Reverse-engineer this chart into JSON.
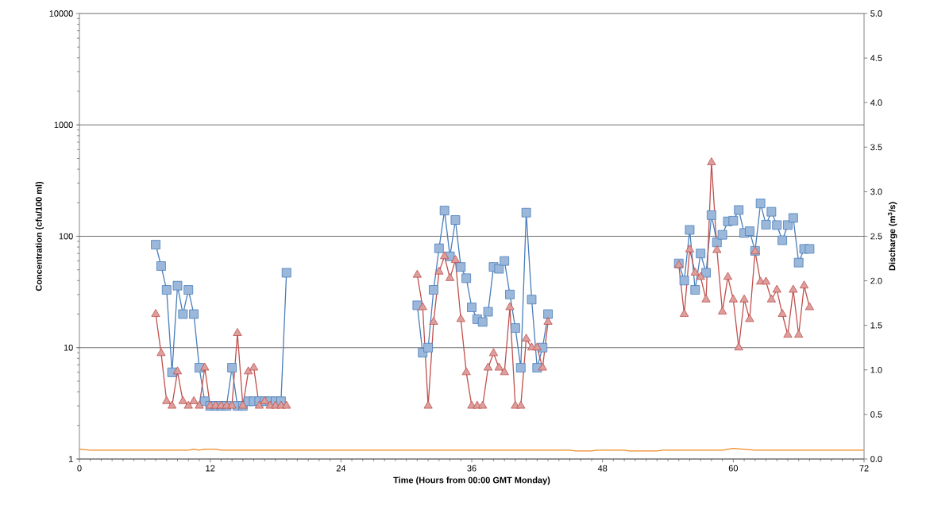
{
  "chart_data": {
    "type": "line",
    "xlabel": "Time (Hours from 00:00 GMT Monday)",
    "ylabel": "Concentration (cfu/100 ml)",
    "y2label": "Discharge (m$^{3}$/s)",
    "log": "y",
    "grid": "y",
    "xlim": [
      0,
      72
    ],
    "xticks": [
      0,
      12,
      24,
      36,
      48,
      60,
      72
    ],
    "ylim": [
      1,
      10000
    ],
    "yticks": [
      1,
      10,
      100,
      1000,
      10000
    ],
    "y2lim": [
      0,
      5
    ],
    "y2ticks": [
      {
        "value": 0,
        "label": "0.0"
      },
      {
        "value": 0.5,
        "label": "0.5"
      },
      {
        "value": 1,
        "label": "1.0"
      },
      {
        "value": 1.5,
        "label": "1.5"
      },
      {
        "value": 2,
        "label": "2.0"
      },
      {
        "value": 2.5,
        "label": "2.5"
      },
      {
        "value": 3,
        "label": "3.0"
      },
      {
        "value": 3.5,
        "label": "3.5"
      },
      {
        "value": 4,
        "label": "4.0"
      },
      {
        "value": 4.5,
        "label": "4.5"
      },
      {
        "value": 5,
        "label": "5.0"
      }
    ],
    "series": [
      {
        "color": "#f08a24",
        "axis": "y2",
        "marker": "none",
        "x": [
          0,
          1,
          10,
          10.5,
          11,
          11.5,
          12.5,
          13,
          45,
          45.5,
          47,
          47.5,
          50,
          50.5,
          53,
          53.5,
          59,
          60,
          61,
          62,
          72
        ],
        "values": [
          0.11,
          0.1,
          0.1,
          0.11,
          0.1,
          0.11,
          0.11,
          0.1,
          0.1,
          0.09,
          0.09,
          0.1,
          0.1,
          0.09,
          0.09,
          0.1,
          0.1,
          0.12,
          0.11,
          0.1,
          0.1
        ]
      },
      {
        "color": "#4a7ebb",
        "marker": "square",
        "x": [
          7,
          7.5,
          8,
          8.5,
          9,
          9.5,
          10,
          10.5,
          11,
          11.5,
          12,
          12.5,
          13,
          13.5,
          14,
          14.5,
          15,
          15.5,
          16,
          16.5,
          17,
          17.5,
          18,
          18.5,
          19,
          25,
          31,
          31.5,
          32,
          32.5,
          33,
          33.5,
          34,
          34.5,
          35,
          35.5,
          36,
          36.5,
          37,
          37.5,
          38,
          38.5,
          39,
          39.5,
          40,
          40.5,
          41,
          41.5,
          42,
          42.5,
          43,
          49,
          55,
          55.5,
          56,
          56.5,
          57,
          57.5,
          58,
          58.5,
          59,
          59.5,
          60,
          60.5,
          61,
          61.5,
          62,
          62.5,
          63,
          63.5,
          64,
          64.5,
          65,
          65.5,
          66,
          66.5,
          67
        ],
        "values": [
          84,
          54,
          33,
          6,
          36,
          20,
          33,
          20,
          6.6,
          3.3,
          3,
          3,
          3,
          3,
          6.6,
          3,
          3,
          3.3,
          3.3,
          3.3,
          3.3,
          3.3,
          3.3,
          3.3,
          47,
          null,
          24,
          9,
          10,
          33,
          78,
          170,
          66,
          140,
          53,
          42,
          23,
          18,
          17,
          21,
          53,
          51,
          60,
          30,
          15,
          6.6,
          163,
          27,
          6.6,
          10,
          20,
          null,
          57,
          40,
          114,
          33,
          70,
          47,
          155,
          88,
          103,
          136,
          138,
          172,
          107,
          111,
          74,
          197,
          127,
          166,
          126,
          92,
          126,
          146,
          58,
          77,
          77
        ]
      },
      {
        "color": "#c0504d",
        "marker": "triangle",
        "x": [
          7,
          7.5,
          8,
          8.5,
          9,
          9.5,
          10,
          10.5,
          11,
          11.5,
          12,
          12.5,
          13,
          13.5,
          14,
          14.5,
          15,
          15.5,
          16,
          16.5,
          17,
          17.5,
          18,
          18.5,
          19,
          25,
          31,
          31.5,
          32,
          32.5,
          33,
          33.5,
          34,
          34.5,
          35,
          35.5,
          36,
          36.5,
          37,
          37.5,
          38,
          38.5,
          39,
          39.5,
          40,
          40.5,
          41,
          41.5,
          42,
          42.5,
          43,
          49,
          55,
          55.5,
          56,
          56.5,
          57,
          57.5,
          58,
          58.5,
          59,
          59.5,
          60,
          60.5,
          61,
          61.5,
          62,
          62.5,
          63,
          63.5,
          64,
          64.5,
          65,
          65.5,
          66,
          66.5,
          67
        ],
        "values": [
          20,
          8.9,
          3.3,
          3,
          6.1,
          3.3,
          3,
          3.3,
          3,
          6.6,
          3,
          3,
          3,
          3,
          3,
          13.5,
          3,
          6.1,
          6.6,
          3,
          3.3,
          3,
          3,
          3,
          3,
          null,
          45,
          23,
          3,
          17,
          48,
          66,
          42,
          61,
          18,
          6,
          3,
          3,
          3,
          6.6,
          8.9,
          6.6,
          6,
          23,
          3,
          3,
          12,
          10,
          10,
          6.6,
          17,
          null,
          55,
          20,
          76,
          47,
          43,
          27,
          460,
          75,
          21,
          43,
          27,
          10,
          27,
          18,
          73,
          39,
          39,
          27,
          33,
          20,
          13,
          33,
          13,
          36,
          23
        ]
      }
    ]
  }
}
